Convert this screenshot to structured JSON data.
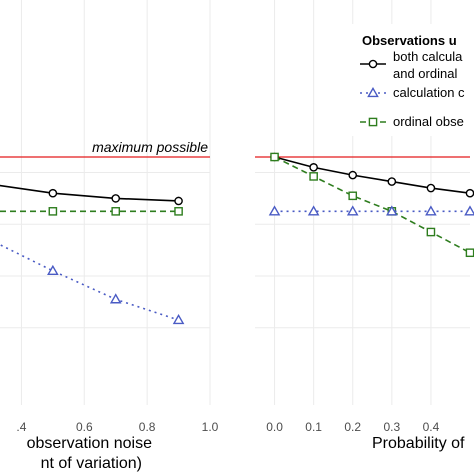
{
  "colors": {
    "max_line": "#e41a1c",
    "both": "#000000",
    "calc": "#4a5bc4",
    "ordinal": "#2e7d1e",
    "grid": "#ebebeb",
    "tick_text": "#4d4d4d"
  },
  "legend": {
    "title": "Observations u",
    "placement": "top-right",
    "entries": [
      {
        "series": "both",
        "lines": [
          "both calcula",
          "and ordinal"
        ]
      },
      {
        "series": "calc",
        "lines": [
          "calculation c"
        ]
      },
      {
        "series": "ordinal",
        "lines": [
          "ordinal obse"
        ]
      }
    ]
  },
  "chart_data": [
    {
      "type": "line",
      "panel": "left",
      "xlabel_lines": [
        "observation noise",
        "nt of variation)"
      ],
      "xlim": [
        0.3,
        1.0
      ],
      "ylim": [
        0,
        1
      ],
      "xticks": [
        0.4,
        0.6,
        0.8,
        1.0
      ],
      "xtick_labels": [
        ".4",
        "0.6",
        "0.8",
        "1.0"
      ],
      "grid": true,
      "reference_line": {
        "y": 0.86,
        "label": "maximum possible"
      },
      "series": [
        {
          "key": "both",
          "marker": "circle",
          "linestyle": "solid",
          "x": [
            0.3,
            0.5,
            0.7,
            0.9
          ],
          "y": [
            0.755,
            0.72,
            0.7,
            0.69
          ]
        },
        {
          "key": "ordinal",
          "marker": "square",
          "linestyle": "dashed",
          "x": [
            0.3,
            0.5,
            0.7,
            0.9
          ],
          "y": [
            0.65,
            0.65,
            0.65,
            0.65
          ]
        },
        {
          "key": "calc",
          "marker": "triangle",
          "linestyle": "dotted",
          "x": [
            0.3,
            0.5,
            0.7,
            0.9
          ],
          "y": [
            0.54,
            0.42,
            0.31,
            0.23
          ]
        }
      ]
    },
    {
      "type": "line",
      "panel": "right",
      "xlabel_lines": [
        "Probability of"
      ],
      "xlim": [
        -0.05,
        0.5
      ],
      "ylim": [
        0,
        1
      ],
      "xticks": [
        0.0,
        0.1,
        0.2,
        0.3,
        0.4
      ],
      "xtick_labels": [
        "0.0",
        "0.1",
        "0.2",
        "0.3",
        "0.4"
      ],
      "grid": true,
      "reference_line": {
        "y": 0.86
      },
      "series": [
        {
          "key": "both",
          "marker": "circle",
          "linestyle": "solid",
          "x": [
            0.0,
            0.1,
            0.2,
            0.3,
            0.4,
            0.5
          ],
          "y": [
            0.86,
            0.82,
            0.79,
            0.765,
            0.74,
            0.72
          ]
        },
        {
          "key": "ordinal",
          "marker": "square",
          "linestyle": "dashed",
          "x": [
            0.0,
            0.1,
            0.2,
            0.3,
            0.4,
            0.5
          ],
          "y": [
            0.86,
            0.785,
            0.71,
            0.65,
            0.57,
            0.49
          ]
        },
        {
          "key": "calc",
          "marker": "triangle",
          "linestyle": "dotted",
          "x": [
            0.0,
            0.1,
            0.2,
            0.3,
            0.4,
            0.5
          ],
          "y": [
            0.65,
            0.65,
            0.65,
            0.65,
            0.65,
            0.65
          ]
        }
      ]
    }
  ]
}
